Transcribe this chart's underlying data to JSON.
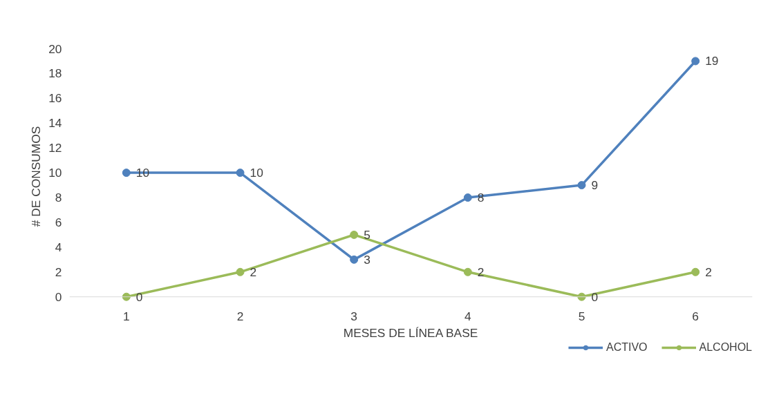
{
  "chart_data": {
    "type": "line",
    "xlabel": "MESES DE LÍNEA BASE",
    "ylabel": "# DE CONSUMOS",
    "categories": [
      "1",
      "2",
      "3",
      "4",
      "5",
      "6"
    ],
    "series": [
      {
        "name": "ACTIVO",
        "color": "#4f81bd",
        "values": [
          10,
          10,
          3,
          8,
          9,
          19
        ]
      },
      {
        "name": "ALCOHOL",
        "color": "#9bbb59",
        "values": [
          0,
          2,
          5,
          2,
          0,
          2
        ]
      }
    ],
    "ylim": [
      0,
      20
    ],
    "yticks": [
      0,
      2,
      4,
      6,
      8,
      10,
      12,
      14,
      16,
      18,
      20
    ],
    "grid": false,
    "legend": "bottom right",
    "marker": "circle",
    "line_style": "solid",
    "data_labels": true
  }
}
